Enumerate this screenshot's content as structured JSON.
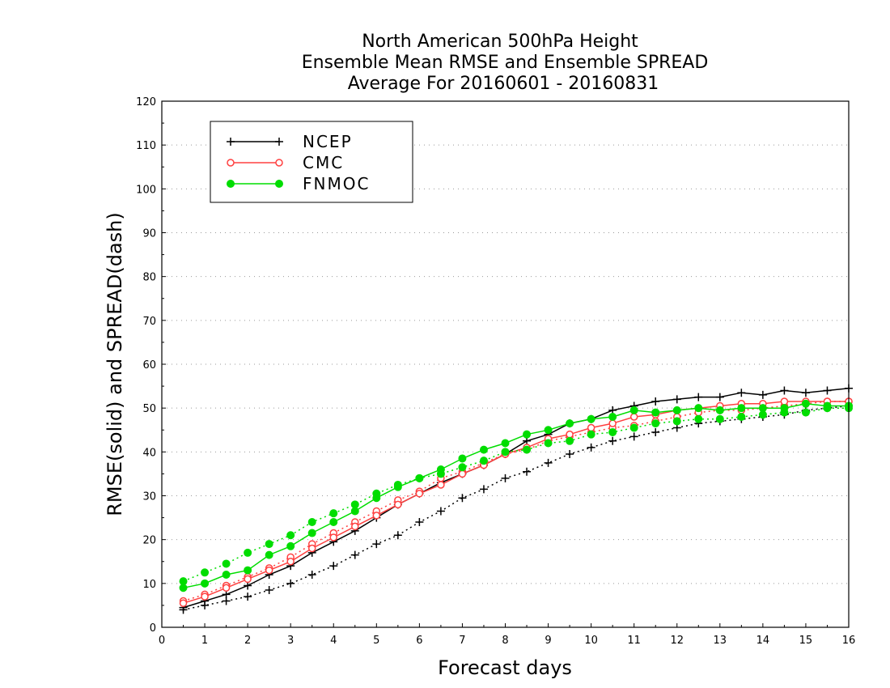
{
  "chart_data": {
    "type": "line",
    "title_lines": [
      "North American 500hPa Height",
      "Ensemble Mean RMSE and Ensemble SPREAD",
      "Average For 20160601 - 20160831"
    ],
    "xlabel": "Forecast days",
    "ylabel": "RMSE(solid) and SPREAD(dash)",
    "xlim": [
      0,
      16
    ],
    "ylim": [
      0,
      120
    ],
    "xticks": [
      0,
      1,
      2,
      3,
      4,
      5,
      6,
      7,
      8,
      9,
      10,
      11,
      12,
      13,
      14,
      15,
      16
    ],
    "yticks": [
      0,
      10,
      20,
      30,
      40,
      50,
      60,
      70,
      80,
      90,
      100,
      110,
      120
    ],
    "grid": "horizontal dotted",
    "legend_position": "top-left",
    "x": [
      0.5,
      1,
      1.5,
      2,
      2.5,
      3,
      3.5,
      4,
      4.5,
      5,
      5.5,
      6,
      6.5,
      7,
      7.5,
      8,
      8.5,
      9,
      9.5,
      10,
      10.5,
      11,
      11.5,
      12,
      12.5,
      13,
      13.5,
      14,
      14.5,
      15,
      15.5,
      16
    ],
    "series": [
      {
        "name": "NCEP",
        "color": "#000000",
        "marker": "plus",
        "rmse": [
          4.5,
          6,
          7.5,
          9.5,
          12,
          14,
          17,
          19.5,
          22,
          25,
          28,
          30.5,
          33,
          35,
          37,
          39.5,
          42.5,
          44,
          46.5,
          47.5,
          49.5,
          50.5,
          51.5,
          52,
          52.5,
          52.5,
          53.5,
          53,
          54,
          53.5,
          54,
          54.5
        ],
        "spread": [
          4,
          5,
          6,
          7,
          8.5,
          10,
          12,
          14,
          16.5,
          19,
          21,
          24,
          26.5,
          29.5,
          31.5,
          34,
          35.5,
          37.5,
          39.5,
          41,
          42.5,
          43.5,
          44.5,
          45.5,
          46.5,
          47,
          47.5,
          48,
          48.5,
          49.5,
          50,
          50.5
        ]
      },
      {
        "name": "CMC",
        "color": "#ff4040",
        "marker": "open-circle",
        "rmse": [
          5.5,
          7,
          9,
          11,
          13,
          15,
          18,
          20.5,
          23,
          25.5,
          28,
          30.5,
          32.5,
          35,
          37,
          39.5,
          41,
          43,
          44,
          45.5,
          46.5,
          48,
          48.5,
          49.5,
          50,
          50.5,
          51,
          51,
          51.5,
          51.5,
          51.5,
          51.5
        ],
        "spread": [
          6,
          7.5,
          9.5,
          11.5,
          13.5,
          16,
          19,
          21.5,
          24,
          26.5,
          29,
          31,
          34,
          35.5,
          37.5,
          39.5,
          40.5,
          42.5,
          43.5,
          44.5,
          45.5,
          46,
          47,
          48,
          49,
          49.5,
          49.5,
          50,
          50.5,
          51,
          51.5,
          51.5
        ]
      },
      {
        "name": "FNMOC",
        "color": "#00dd00",
        "marker": "filled-circle",
        "rmse": [
          9,
          10,
          12,
          13,
          16.5,
          18.5,
          21.5,
          24,
          26.5,
          29.5,
          32,
          34,
          36,
          38.5,
          40.5,
          42,
          44,
          45,
          46.5,
          47.5,
          48,
          49.5,
          49,
          49.5,
          50,
          49.5,
          50,
          50,
          50,
          51,
          50.5,
          50.5
        ],
        "spread": [
          10.5,
          12.5,
          14.5,
          17,
          19,
          21,
          24,
          26,
          28,
          30.5,
          32.5,
          34,
          35,
          36.5,
          38,
          40,
          40.5,
          42,
          42.5,
          44,
          44.5,
          45.5,
          46.5,
          47,
          47.5,
          47.5,
          48,
          48.5,
          49,
          49,
          50,
          50
        ]
      }
    ]
  }
}
